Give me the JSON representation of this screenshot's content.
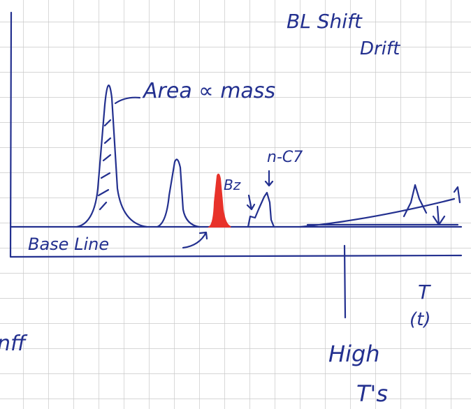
{
  "annotations": {
    "bl_shift": "BL Shift",
    "drift": "Drift",
    "area": "Area ∝ mass",
    "n_c7": "n-C7",
    "bz": "Bz",
    "baseline": "Base Line",
    "t_axis": "T",
    "t_paren": "(t)",
    "high": "High",
    "ts": "T's",
    "left_fragment": "nff"
  }
}
